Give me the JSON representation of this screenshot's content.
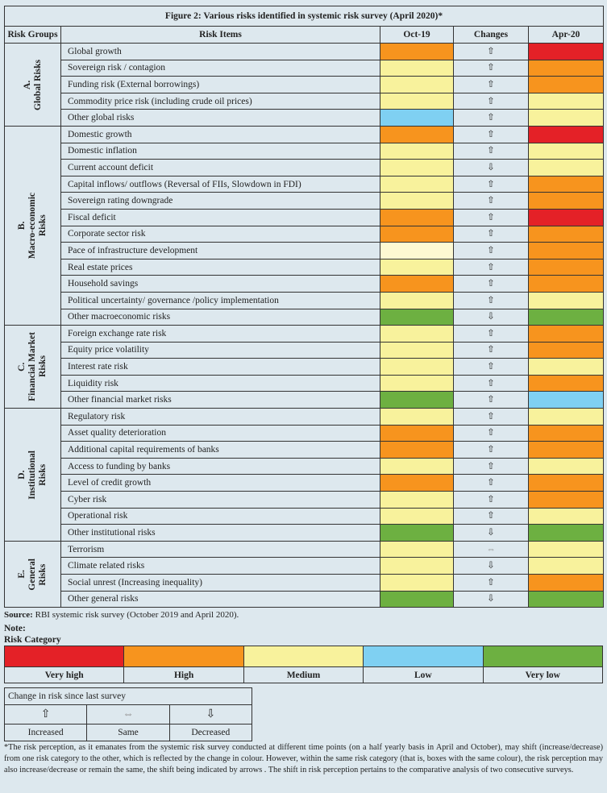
{
  "title": "Figure 2: Various risks identified in systemic risk survey (April 2020)*",
  "headers": {
    "group": "Risk Groups",
    "item": "Risk Items",
    "oct": "Oct-19",
    "changes": "Changes",
    "apr": "Apr-20"
  },
  "colors": {
    "very_high": "#e42127",
    "high": "#f7941e",
    "medium": "#f8f29c",
    "medium_light": "#fdf9d2",
    "low": "#7fd0f2",
    "very_low": "#6db041"
  },
  "arrows": {
    "up": "⇧",
    "down": "⇩",
    "same": "⇔"
  },
  "groups": [
    {
      "label": "A.\nGlobal Risks",
      "rows": [
        [
          "Global growth",
          "high",
          "up",
          "very_high"
        ],
        [
          "Sovereign risk / contagion",
          "medium",
          "up",
          "high"
        ],
        [
          "Funding risk  (External borrowings)",
          "medium",
          "up",
          "high"
        ],
        [
          "Commodity price risk (including crude oil prices)",
          "medium",
          "up",
          "medium"
        ],
        [
          "Other global risks",
          "low",
          "up",
          "medium"
        ]
      ]
    },
    {
      "label": "B.\nMacro-economic\nRisks",
      "rows": [
        [
          "Domestic growth",
          "high",
          "up",
          "very_high"
        ],
        [
          "Domestic inflation",
          "medium",
          "up",
          "medium"
        ],
        [
          "Current account deficit",
          "medium",
          "down",
          "medium"
        ],
        [
          "Capital inflows/ outflows (Reversal of FIIs, Slowdown in FDI)",
          "medium",
          "up",
          "high"
        ],
        [
          "Sovereign rating downgrade",
          "medium",
          "up",
          "high"
        ],
        [
          "Fiscal deficit",
          "high",
          "up",
          "very_high"
        ],
        [
          "Corporate sector risk",
          "high",
          "up",
          "high"
        ],
        [
          "Pace of  infrastructure development",
          "medium_light",
          "up",
          "high"
        ],
        [
          "Real estate prices",
          "medium",
          "up",
          "high"
        ],
        [
          "Household savings",
          "high",
          "up",
          "high"
        ],
        [
          "Political uncertainty/ governance /policy implementation",
          "medium",
          "up",
          "medium"
        ],
        [
          "Other macroeconomic risks",
          "very_low",
          "down",
          "very_low"
        ]
      ]
    },
    {
      "label": "C.\nFinancial Market\nRisks",
      "rows": [
        [
          "Foreign exchange rate risk",
          "medium",
          "up",
          "high"
        ],
        [
          "Equity price volatility",
          "medium",
          "up",
          "high"
        ],
        [
          "Interest rate risk",
          "medium",
          "up",
          "medium"
        ],
        [
          "Liquidity risk",
          "medium",
          "up",
          "high"
        ],
        [
          "Other financial market risks",
          "very_low",
          "up",
          "low"
        ]
      ]
    },
    {
      "label": "D.\nInstitutional\nRisks",
      "rows": [
        [
          "Regulatory risk",
          "medium",
          "up",
          "medium"
        ],
        [
          "Asset quality deterioration",
          "high",
          "up",
          "high"
        ],
        [
          "Additional capital requirements of banks",
          "high",
          "up",
          "high"
        ],
        [
          "Access to funding by banks",
          "medium",
          "up",
          "medium"
        ],
        [
          "Level of credit growth",
          "high",
          "up",
          "high"
        ],
        [
          "Cyber risk",
          "medium",
          "up",
          "high"
        ],
        [
          "Operational risk",
          "medium",
          "up",
          "medium"
        ],
        [
          "Other institutional risks",
          "very_low",
          "down",
          "very_low"
        ]
      ]
    },
    {
      "label": "E.\nGeneral\nRisks",
      "rows": [
        [
          "Terrorism",
          "medium",
          "same",
          "medium"
        ],
        [
          "Climate related risks",
          "medium",
          "down",
          "medium"
        ],
        [
          "Social unrest (Increasing inequality)",
          "medium",
          "up",
          "high"
        ],
        [
          "Other general risks",
          "very_low",
          "down",
          "very_low"
        ]
      ]
    }
  ],
  "source": {
    "label": "Source:",
    "text": " RBI systemic risk survey (October 2019 and April 2020)."
  },
  "note": "Note:",
  "risk_category": {
    "title": "Risk Category",
    "items": [
      {
        "key": "very_high",
        "label": "Very high"
      },
      {
        "key": "high",
        "label": "High"
      },
      {
        "key": "medium",
        "label": "Medium"
      },
      {
        "key": "low",
        "label": "Low"
      },
      {
        "key": "very_low",
        "label": "Very low"
      }
    ]
  },
  "change_legend": {
    "title": "Change in risk since last survey",
    "items": [
      {
        "key": "up",
        "label": "Increased"
      },
      {
        "key": "same",
        "label": "Same"
      },
      {
        "key": "down",
        "label": "Decreased"
      }
    ]
  },
  "footnote": "*The risk perception, as it emanates from the systemic risk survey conducted at different time points (on a half yearly basis in April and October), may shift (increase/decrease) from one risk category to the other, which is reflected by the change in colour. However, within the same risk category (that is, boxes with the same colour), the risk perception may also increase/decrease or remain the same, the shift being indicated by arrows . The shift in risk perception pertains to the comparative analysis of two consecutive surveys."
}
